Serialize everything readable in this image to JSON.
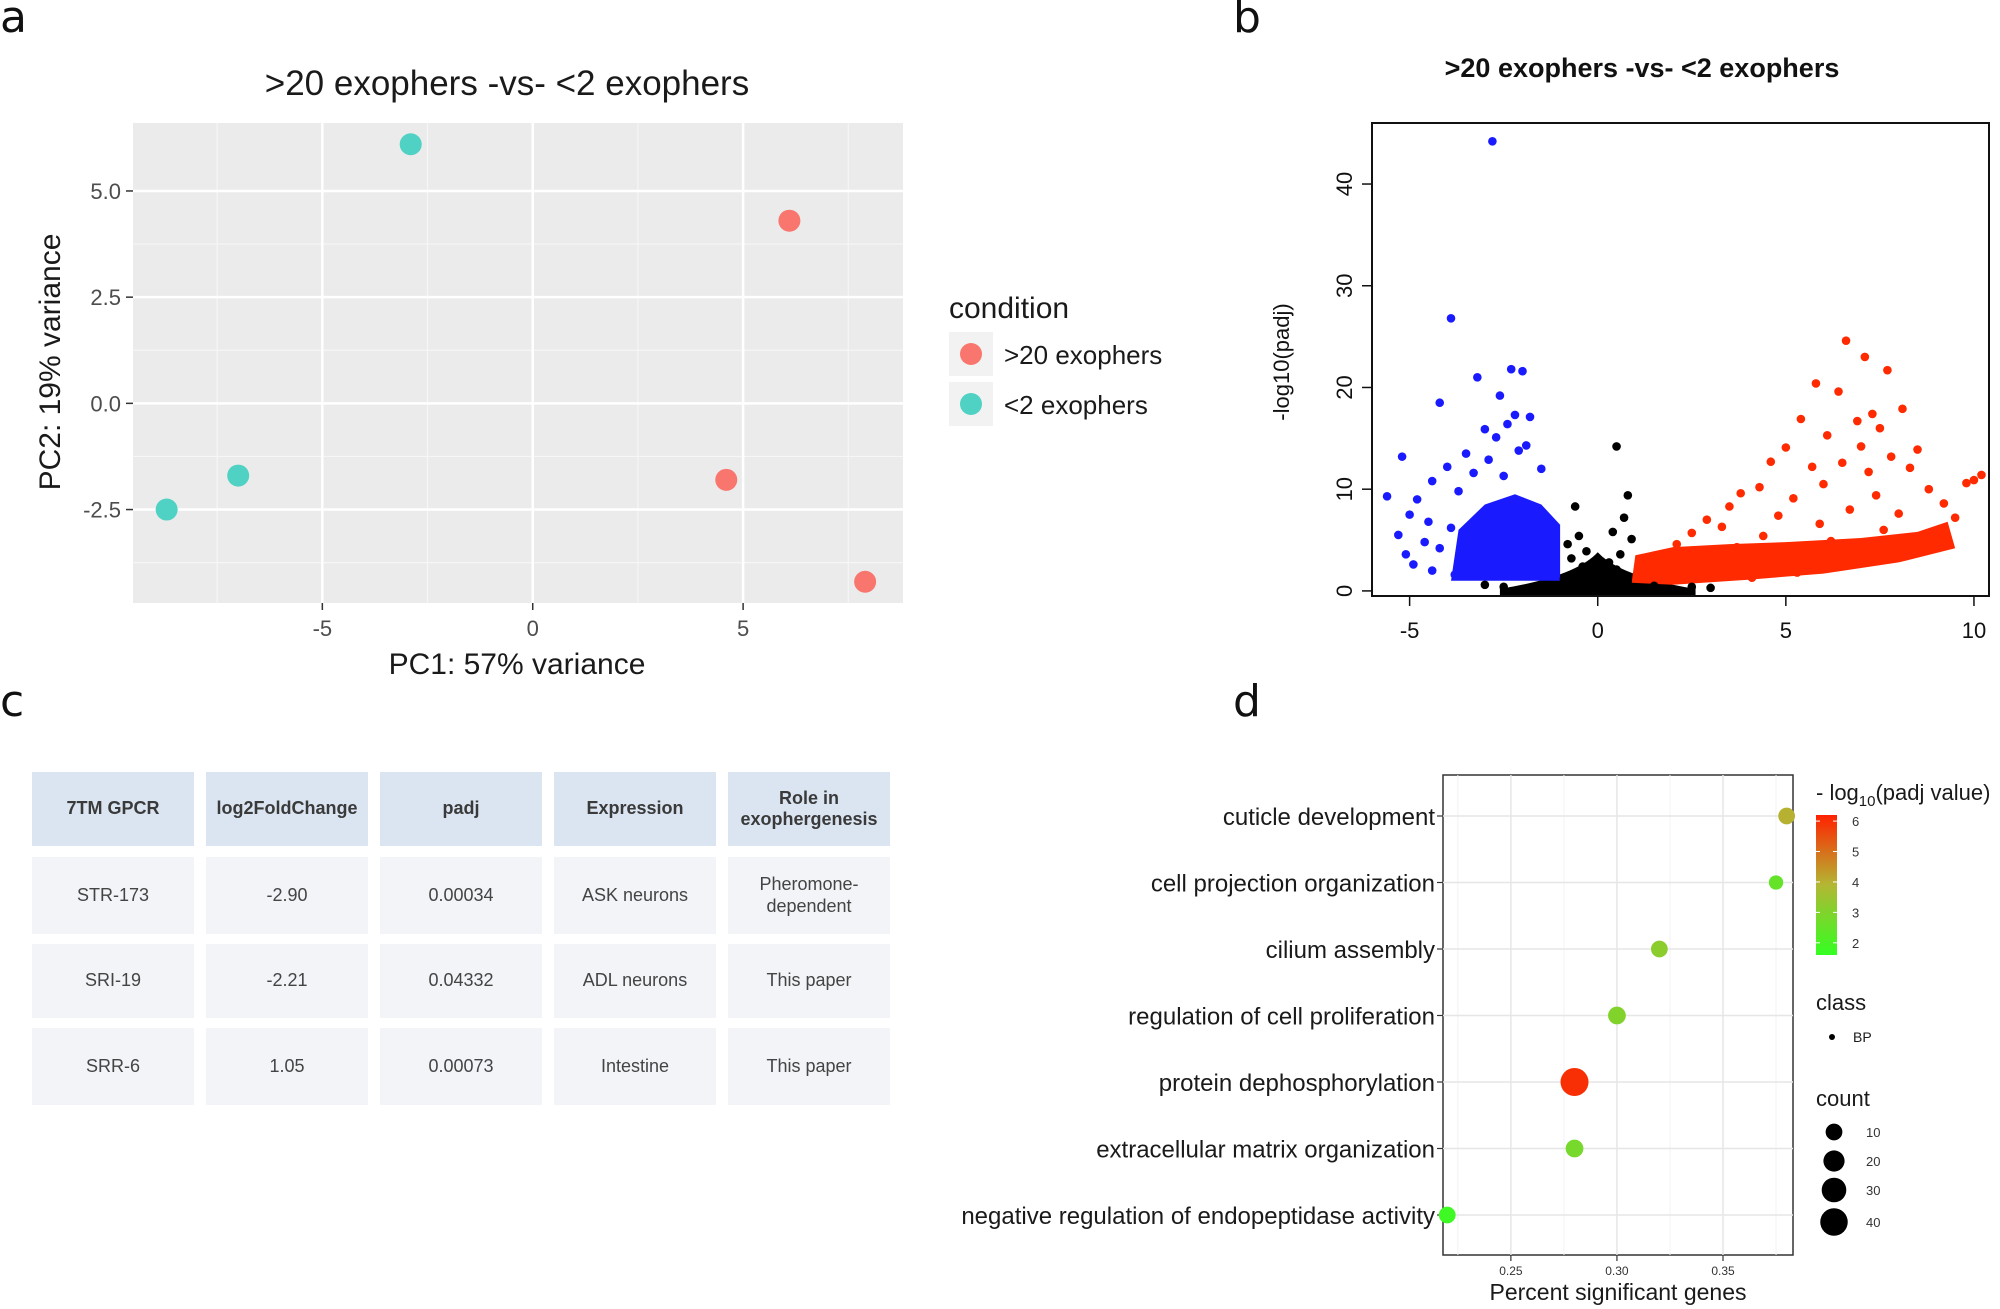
{
  "panel_letters": [
    "a",
    "b",
    "c",
    "d"
  ],
  "colors": {
    "pca_high": "#f8766d",
    "pca_low": "#4fd2c4",
    "volcano_up": "#ff2a00",
    "volcano_down": "#1a1aff",
    "volcano_ns": "#000000",
    "table_header": "#dbe5f2",
    "table_cell": "#f2f4f7"
  },
  "chart_data": [
    {
      "id": "a",
      "type": "scatter",
      "title": ">20 exophers -vs- <2 exophers",
      "xlabel": "PC1: 57% variance",
      "ylabel": "PC2: 19% variance",
      "xlim": [
        -9.5,
        8.8
      ],
      "ylim": [
        -4.7,
        6.6
      ],
      "xticks": [
        -5,
        0,
        5
      ],
      "xtick_labels": [
        "-5",
        "0",
        "5"
      ],
      "yticks": [
        -2.5,
        0,
        2.5,
        5
      ],
      "ytick_labels": [
        "-2.5",
        "0.0",
        "2.5",
        "5.0"
      ],
      "grid": true,
      "legend_title": "condition",
      "legend_position": "right",
      "series": [
        {
          "name": ">20 exophers",
          "color": "#f8766d",
          "points": [
            [
              6.1,
              4.3
            ],
            [
              4.6,
              -1.8
            ],
            [
              7.9,
              -4.2
            ]
          ]
        },
        {
          "name": "<2 exophers",
          "color": "#4fd2c4",
          "points": [
            [
              -2.9,
              6.1
            ],
            [
              -7.0,
              -1.7
            ],
            [
              -8.7,
              -2.5
            ]
          ]
        }
      ]
    },
    {
      "id": "b",
      "type": "scatter",
      "title": ">20 exophers -vs- <2 exophers",
      "xlabel": "",
      "ylabel": "-log10(padj)",
      "xlim": [
        -6.0,
        10.4
      ],
      "ylim": [
        -0.5,
        46
      ],
      "xticks": [
        -5,
        0,
        5,
        10
      ],
      "xtick_labels": [
        "-5",
        "0",
        "5",
        "10"
      ],
      "yticks": [
        0,
        10,
        20,
        30,
        40
      ],
      "ytick_labels": [
        "0",
        "10",
        "20",
        "30",
        "40"
      ],
      "grid": false,
      "series": [
        {
          "color": "#1a1aff",
          "points": [
            [
              -2.8,
              44.2
            ],
            [
              -3.9,
              26.8
            ],
            [
              -2.3,
              21.8
            ],
            [
              -2.0,
              21.6
            ],
            [
              -3.2,
              21.0
            ],
            [
              -2.6,
              19.2
            ],
            [
              -4.2,
              18.5
            ],
            [
              -1.8,
              17.1
            ],
            [
              -2.2,
              17.3
            ],
            [
              -3.0,
              15.9
            ],
            [
              -2.4,
              16.4
            ],
            [
              -2.7,
              15.1
            ],
            [
              -1.9,
              14.3
            ],
            [
              -5.2,
              13.2
            ],
            [
              -3.5,
              13.5
            ],
            [
              -2.1,
              13.8
            ],
            [
              -2.9,
              12.9
            ],
            [
              -4.0,
              12.2
            ],
            [
              -1.5,
              12.0
            ],
            [
              -3.3,
              11.6
            ],
            [
              -2.5,
              11.3
            ],
            [
              -4.4,
              10.8
            ],
            [
              -5.6,
              9.3
            ],
            [
              -3.7,
              9.8
            ],
            [
              -4.8,
              9.0
            ],
            [
              -5.0,
              7.5
            ],
            [
              -4.5,
              6.8
            ],
            [
              -3.9,
              6.2
            ],
            [
              -5.3,
              5.5
            ],
            [
              -4.6,
              4.8
            ],
            [
              -4.2,
              4.2
            ],
            [
              -5.1,
              3.6
            ],
            [
              -3.6,
              3.0
            ],
            [
              -4.9,
              2.6
            ],
            [
              -4.4,
              2.0
            ],
            [
              -3.8,
              1.6
            ]
          ]
        },
        {
          "color": "#ff2a00",
          "points": [
            [
              6.6,
              24.6
            ],
            [
              7.1,
              23.0
            ],
            [
              7.7,
              21.7
            ],
            [
              5.8,
              20.4
            ],
            [
              6.4,
              19.6
            ],
            [
              8.1,
              17.9
            ],
            [
              7.3,
              17.4
            ],
            [
              6.9,
              16.7
            ],
            [
              5.4,
              16.9
            ],
            [
              7.5,
              16.0
            ],
            [
              6.1,
              15.3
            ],
            [
              8.5,
              13.9
            ],
            [
              7.0,
              14.2
            ],
            [
              5.0,
              14.1
            ],
            [
              7.8,
              13.2
            ],
            [
              6.5,
              12.6
            ],
            [
              4.6,
              12.7
            ],
            [
              8.3,
              12.1
            ],
            [
              5.7,
              12.2
            ],
            [
              7.2,
              11.7
            ],
            [
              10.2,
              11.4
            ],
            [
              10.0,
              10.9
            ],
            [
              9.8,
              10.6
            ],
            [
              6.0,
              10.5
            ],
            [
              4.3,
              10.2
            ],
            [
              8.8,
              10.0
            ],
            [
              3.8,
              9.6
            ],
            [
              7.4,
              9.4
            ],
            [
              5.2,
              9.1
            ],
            [
              9.2,
              8.6
            ],
            [
              3.5,
              8.3
            ],
            [
              6.7,
              8.0
            ],
            [
              8.0,
              7.6
            ],
            [
              4.8,
              7.4
            ],
            [
              2.9,
              7.0
            ],
            [
              9.5,
              7.2
            ],
            [
              5.9,
              6.6
            ],
            [
              3.3,
              6.3
            ],
            [
              7.6,
              6.0
            ],
            [
              2.5,
              5.7
            ],
            [
              4.4,
              5.4
            ],
            [
              8.6,
              5.2
            ],
            [
              6.2,
              4.9
            ],
            [
              2.1,
              4.6
            ],
            [
              3.7,
              4.3
            ],
            [
              5.5,
              4.0
            ],
            [
              1.8,
              3.7
            ],
            [
              7.9,
              3.5
            ],
            [
              2.8,
              3.2
            ],
            [
              4.9,
              2.9
            ],
            [
              1.5,
              2.6
            ],
            [
              6.6,
              2.5
            ],
            [
              3.4,
              2.2
            ],
            [
              1.2,
              1.9
            ],
            [
              5.3,
              1.8
            ],
            [
              2.4,
              1.5
            ],
            [
              4.1,
              1.3
            ]
          ]
        },
        {
          "color": "#000000",
          "points": [
            [
              0.5,
              14.2
            ],
            [
              0.8,
              9.4
            ],
            [
              -0.6,
              8.3
            ],
            [
              0.7,
              7.2
            ],
            [
              0.4,
              5.8
            ],
            [
              -0.5,
              5.4
            ],
            [
              0.9,
              5.1
            ],
            [
              -0.8,
              4.6
            ],
            [
              -0.3,
              3.9
            ],
            [
              0.6,
              3.6
            ],
            [
              -0.7,
              3.2
            ],
            [
              0.3,
              2.8
            ],
            [
              -0.4,
              2.4
            ],
            [
              0.5,
              2.1
            ],
            [
              -0.2,
              1.7
            ],
            [
              0.2,
              1.4
            ],
            [
              -0.9,
              1.2
            ],
            [
              0.8,
              1.0
            ],
            [
              -0.6,
              0.8
            ],
            [
              0.4,
              0.6
            ],
            [
              -0.3,
              0.4
            ],
            [
              0.1,
              0.3
            ],
            [
              -0.1,
              0.2
            ],
            [
              0.0,
              0.1
            ],
            [
              -1.5,
              0.5
            ],
            [
              -2.5,
              0.4
            ],
            [
              -3.0,
              0.6
            ],
            [
              1.5,
              0.5
            ],
            [
              2.5,
              0.4
            ],
            [
              3.0,
              0.3
            ]
          ]
        }
      ]
    },
    {
      "id": "c",
      "type": "table",
      "columns": [
        "7TM GPCR",
        "log2FoldChange",
        "padj",
        "Expression",
        "Role in exophergenesis"
      ],
      "rows": [
        [
          "STR-173",
          "-2.90",
          "0.00034",
          "ASK neurons",
          "Pheromone-dependent"
        ],
        [
          "SRI-19",
          "-2.21",
          "0.04332",
          "ADL neurons",
          "This paper"
        ],
        [
          "SRR-6",
          "1.05",
          "0.00073",
          "Intestine",
          "This paper"
        ]
      ]
    },
    {
      "id": "d",
      "type": "scatter",
      "xlabel": "Percent significant genes",
      "ylabel": "",
      "xlim": [
        0.218,
        0.383
      ],
      "xticks": [
        0.25,
        0.3,
        0.35
      ],
      "xtick_labels": [
        "0.25",
        "0.30",
        "0.35"
      ],
      "categories": [
        "cuticle development",
        "cell projection organization",
        "cilium assembly",
        "regulation of cell proliferation",
        "protein dephosphorylation",
        "extracellular matrix organization",
        "negative regulation of endopeptidase activity"
      ],
      "points": [
        {
          "term": "cuticle development",
          "x": 0.38,
          "neglog10_padj": 4.0,
          "count": 10
        },
        {
          "term": "cell projection organization",
          "x": 0.375,
          "neglog10_padj": 2.5,
          "count": 6
        },
        {
          "term": "cilium assembly",
          "x": 0.32,
          "neglog10_padj": 3.2,
          "count": 10
        },
        {
          "term": "regulation of cell proliferation",
          "x": 0.3,
          "neglog10_padj": 3.0,
          "count": 12
        },
        {
          "term": "protein dephosphorylation",
          "x": 0.28,
          "neglog10_padj": 6.0,
          "count": 42
        },
        {
          "term": "extracellular matrix organization",
          "x": 0.28,
          "neglog10_padj": 2.8,
          "count": 12
        },
        {
          "term": "negative regulation of endopeptidase activity",
          "x": 0.22,
          "neglog10_padj": 1.8,
          "count": 10
        }
      ],
      "legend": {
        "color_title": "- log10(padj value)",
        "color_title_main": "- log",
        "color_title_sub": "10",
        "color_title_rest": "(padj value)",
        "color_ticks": [
          "6",
          "5",
          "4",
          "3",
          "2"
        ],
        "color_range": [
          1.6,
          6.2
        ],
        "color_low": "#33ff22",
        "color_high": "#ff2200",
        "class_title": "class",
        "class_label": "BP",
        "size_title": "count",
        "size_ticks": [
          "10",
          "20",
          "30",
          "40"
        ]
      }
    }
  ]
}
